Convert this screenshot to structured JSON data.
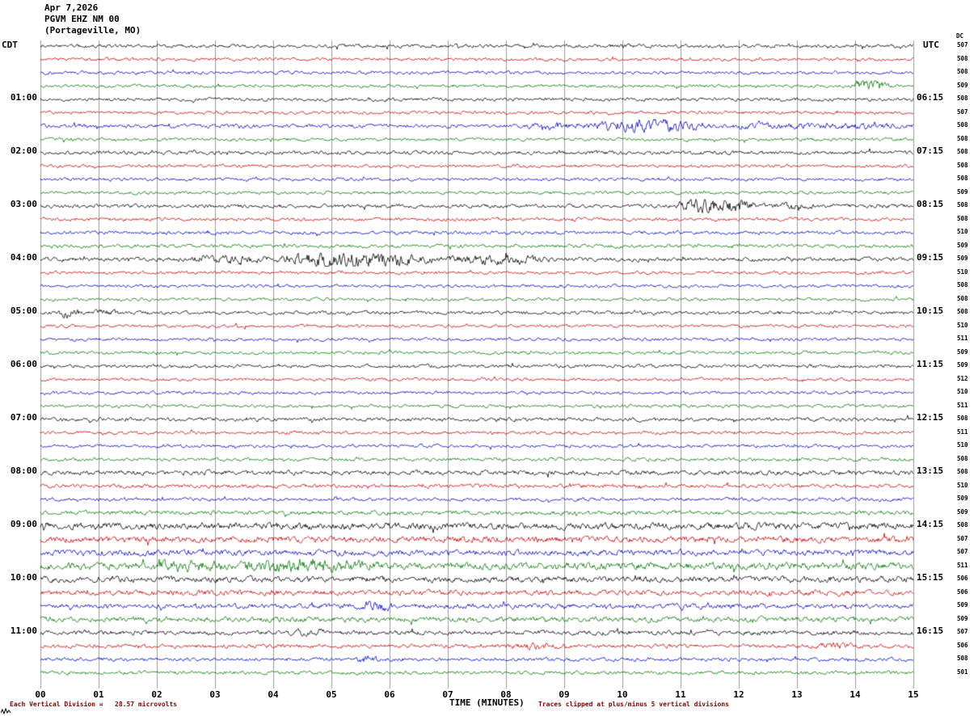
{
  "header": {
    "date": "Apr 7,2026",
    "station": "PGVM EHZ NM 00",
    "location": "(Portageville, MO)"
  },
  "axes": {
    "left_tz": "CDT",
    "right_tz": "UTC",
    "dc_header": "DC",
    "x_label": "TIME (MINUTES)",
    "x_ticks": [
      "00",
      "01",
      "02",
      "03",
      "04",
      "05",
      "06",
      "07",
      "08",
      "09",
      "10",
      "11",
      "12",
      "13",
      "14",
      "15"
    ]
  },
  "footer": {
    "left_note": "Each Vertical Division =   28.57 microvolts",
    "right_note": "Traces clipped at plus/minus 5 vertical divisions"
  },
  "colors": {
    "trace_cycle": [
      "#000000",
      "#cc0000",
      "#0000cc",
      "#007700"
    ],
    "grid": "#9a9a9a",
    "label": "#000000",
    "note": "#8b0000"
  },
  "chart_data": {
    "type": "line",
    "title": "PGVM EHZ NM 00 (Portageville, MO) helicorder, Apr 7,2026",
    "x_label": "TIME (MINUTES)",
    "x_range_minutes": [
      0,
      15
    ],
    "minutes_per_row": 15,
    "division_microvolts": 28.57,
    "clip_divisions": 5,
    "rows": [
      {
        "t": "",
        "u": "",
        "dc": 507,
        "a": 1.0,
        "ev": []
      },
      {
        "t": "",
        "u": "",
        "dc": 508,
        "a": 0.9,
        "ev": []
      },
      {
        "t": "",
        "u": "",
        "dc": 508,
        "a": 0.9,
        "ev": []
      },
      {
        "t": "",
        "u": "",
        "dc": 509,
        "a": 0.9,
        "ev": [
          [
            13.9,
            14.6,
            4.0
          ]
        ]
      },
      {
        "t": "01:00",
        "u": "06:15",
        "dc": 508,
        "a": 1.0,
        "ev": []
      },
      {
        "t": "",
        "u": "",
        "dc": 507,
        "a": 0.9,
        "ev": []
      },
      {
        "t": "",
        "u": "",
        "dc": 508,
        "a": 1.1,
        "ev": [
          [
            8.3,
            9.3,
            2.0
          ],
          [
            9.3,
            11.6,
            3.3
          ],
          [
            11.6,
            15,
            1.8
          ]
        ]
      },
      {
        "t": "",
        "u": "",
        "dc": 508,
        "a": 0.9,
        "ev": []
      },
      {
        "t": "02:00",
        "u": "07:15",
        "dc": 508,
        "a": 1.1,
        "ev": []
      },
      {
        "t": "",
        "u": "",
        "dc": 508,
        "a": 0.9,
        "ev": []
      },
      {
        "t": "",
        "u": "",
        "dc": 508,
        "a": 0.9,
        "ev": []
      },
      {
        "t": "",
        "u": "",
        "dc": 509,
        "a": 0.9,
        "ev": []
      },
      {
        "t": "03:00",
        "u": "08:15",
        "dc": 508,
        "a": 1.1,
        "ev": [
          [
            10.9,
            12.3,
            4.3
          ],
          [
            12.3,
            13.4,
            1.9
          ]
        ]
      },
      {
        "t": "",
        "u": "",
        "dc": 508,
        "a": 1.0,
        "ev": []
      },
      {
        "t": "",
        "u": "",
        "dc": 510,
        "a": 1.0,
        "ev": []
      },
      {
        "t": "",
        "u": "",
        "dc": 509,
        "a": 1.0,
        "ev": []
      },
      {
        "t": "04:00",
        "u": "09:15",
        "dc": 509,
        "a": 1.2,
        "ev": [
          [
            2.5,
            4.0,
            2.2
          ],
          [
            4.0,
            6.8,
            4.0
          ],
          [
            6.8,
            8.8,
            2.4
          ]
        ]
      },
      {
        "t": "",
        "u": "",
        "dc": 510,
        "a": 0.9,
        "ev": []
      },
      {
        "t": "",
        "u": "",
        "dc": 508,
        "a": 0.9,
        "ev": []
      },
      {
        "t": "",
        "u": "",
        "dc": 508,
        "a": 0.9,
        "ev": []
      },
      {
        "t": "05:00",
        "u": "10:15",
        "dc": 508,
        "a": 1.0,
        "ev": [
          [
            0.3,
            0.7,
            3.2
          ],
          [
            0.9,
            1.3,
            2.4
          ]
        ]
      },
      {
        "t": "",
        "u": "",
        "dc": 510,
        "a": 0.9,
        "ev": []
      },
      {
        "t": "",
        "u": "",
        "dc": 511,
        "a": 0.9,
        "ev": []
      },
      {
        "t": "",
        "u": "",
        "dc": 509,
        "a": 0.9,
        "ev": []
      },
      {
        "t": "06:00",
        "u": "11:15",
        "dc": 509,
        "a": 1.0,
        "ev": []
      },
      {
        "t": "",
        "u": "",
        "dc": 512,
        "a": 0.9,
        "ev": []
      },
      {
        "t": "",
        "u": "",
        "dc": 510,
        "a": 0.9,
        "ev": []
      },
      {
        "t": "",
        "u": "",
        "dc": 511,
        "a": 0.9,
        "ev": []
      },
      {
        "t": "07:00",
        "u": "12:15",
        "dc": 508,
        "a": 1.1,
        "ev": []
      },
      {
        "t": "",
        "u": "",
        "dc": 511,
        "a": 0.9,
        "ev": []
      },
      {
        "t": "",
        "u": "",
        "dc": 510,
        "a": 0.9,
        "ev": []
      },
      {
        "t": "",
        "u": "",
        "dc": 508,
        "a": 1.0,
        "ev": []
      },
      {
        "t": "08:00",
        "u": "13:15",
        "dc": 508,
        "a": 1.3,
        "ev": []
      },
      {
        "t": "",
        "u": "",
        "dc": 510,
        "a": 1.1,
        "ev": []
      },
      {
        "t": "",
        "u": "",
        "dc": 509,
        "a": 1.0,
        "ev": []
      },
      {
        "t": "",
        "u": "",
        "dc": 509,
        "a": 1.2,
        "ev": []
      },
      {
        "t": "09:00",
        "u": "14:15",
        "dc": 508,
        "a": 1.9,
        "ev": []
      },
      {
        "t": "",
        "u": "",
        "dc": 507,
        "a": 1.8,
        "ev": []
      },
      {
        "t": "",
        "u": "",
        "dc": 507,
        "a": 1.7,
        "ev": []
      },
      {
        "t": "",
        "u": "",
        "dc": 511,
        "a": 2.1,
        "ev": [
          [
            1.8,
            3.2,
            1.6
          ],
          [
            3.2,
            5.8,
            1.9
          ]
        ]
      },
      {
        "t": "10:00",
        "u": "15:15",
        "dc": 506,
        "a": 1.7,
        "ev": []
      },
      {
        "t": "",
        "u": "",
        "dc": 506,
        "a": 1.5,
        "ev": []
      },
      {
        "t": "",
        "u": "",
        "dc": 509,
        "a": 1.4,
        "ev": [
          [
            5.4,
            6.1,
            2.2
          ]
        ]
      },
      {
        "t": "",
        "u": "",
        "dc": 509,
        "a": 1.5,
        "ev": []
      },
      {
        "t": "11:00",
        "u": "16:15",
        "dc": 507,
        "a": 1.3,
        "ev": [
          [
            4.3,
            5.0,
            1.8
          ]
        ]
      },
      {
        "t": "",
        "u": "",
        "dc": 506,
        "a": 1.1,
        "ev": [
          [
            8.0,
            9.1,
            1.9
          ],
          [
            13.2,
            14.1,
            1.8
          ]
        ]
      },
      {
        "t": "",
        "u": "",
        "dc": 508,
        "a": 1.0,
        "ev": [
          [
            5.4,
            5.8,
            2.6
          ]
        ]
      },
      {
        "t": "",
        "u": "",
        "dc": 501,
        "a": 1.0,
        "ev": []
      }
    ]
  }
}
